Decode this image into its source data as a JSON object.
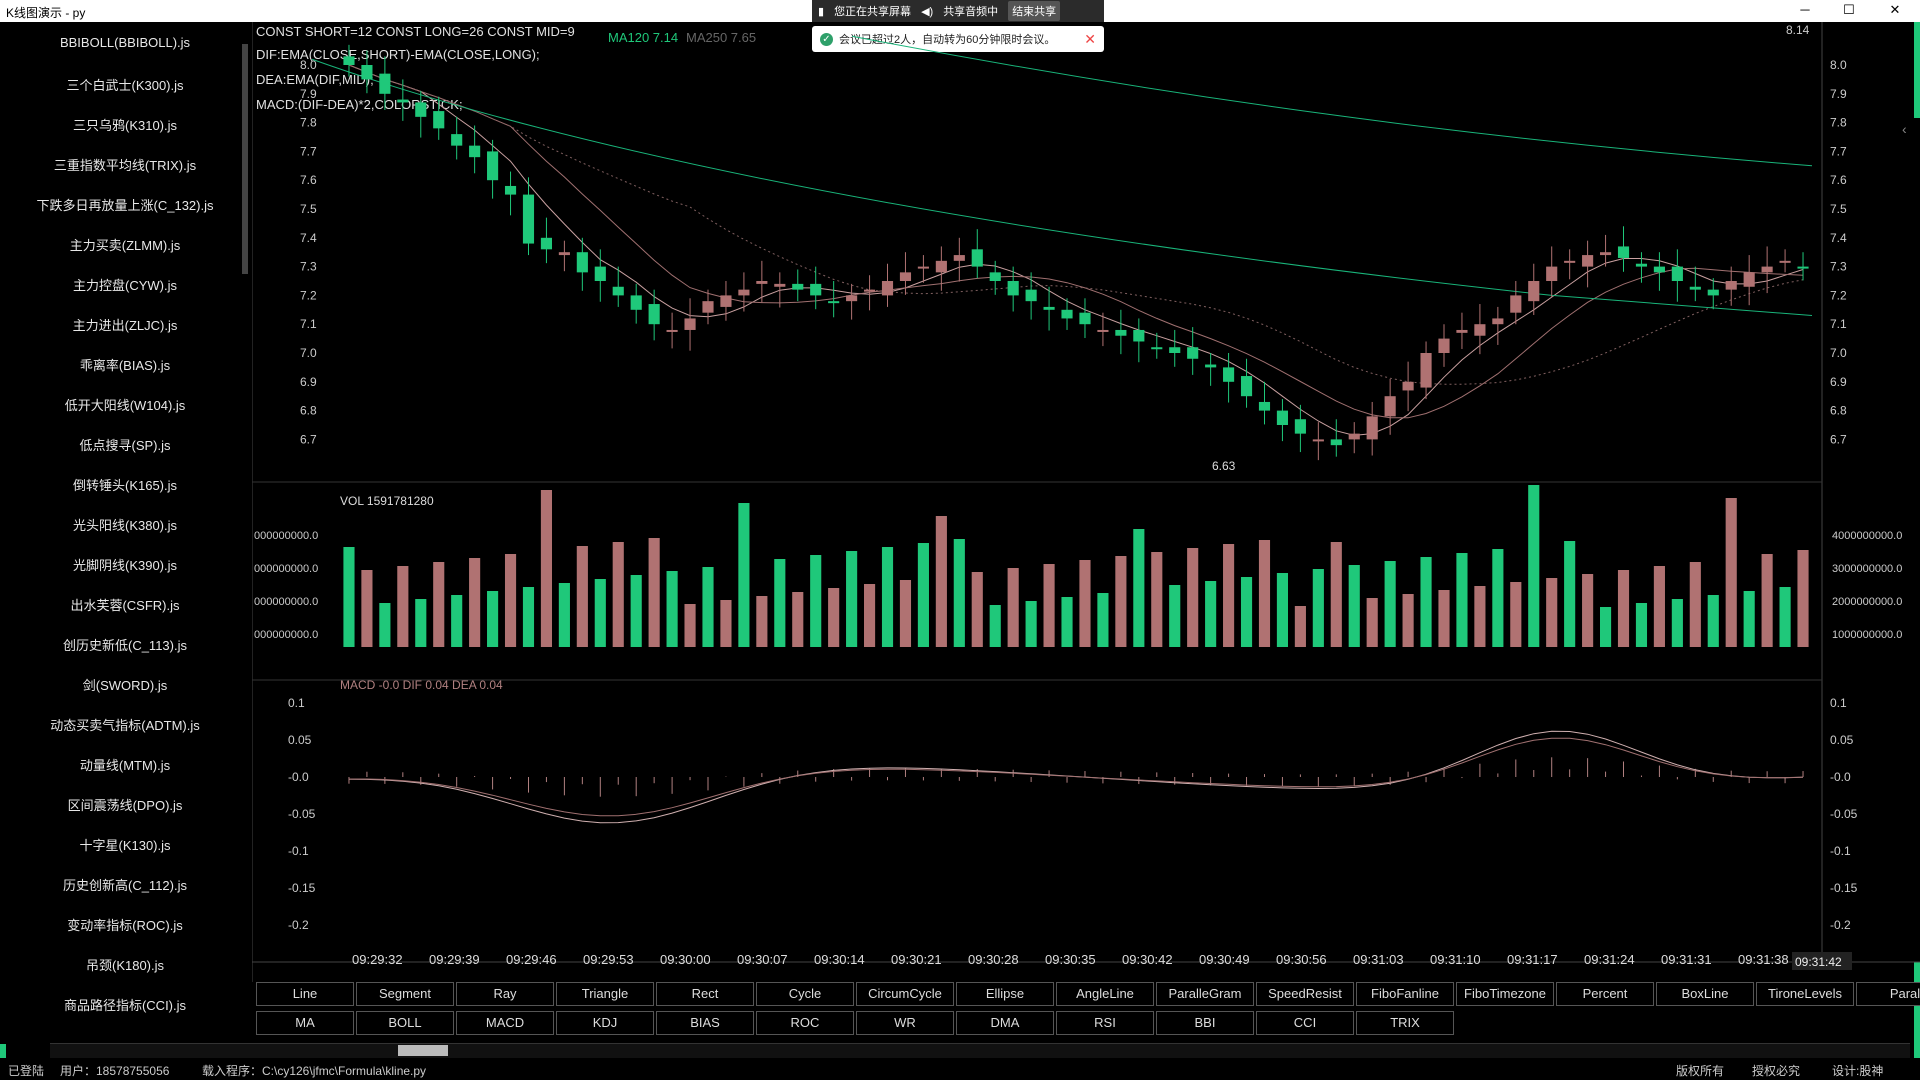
{
  "window": {
    "title": "K线图演示 - py"
  },
  "share": {
    "screen": "您正在共享屏幕",
    "audio": "共享音频中",
    "stop": "结束共享",
    "notice": "会议已超过2人，自动转为60分钟限时会议。"
  },
  "sidebar": {
    "items": [
      "BBIBOLL(BBIBOLL).js",
      "三个白武士(K300).js",
      "三只乌鸦(K310).js",
      "三重指数平均线(TRIX).js",
      "下跌多日再放量上涨(C_132).js",
      "主力买卖(ZLMM).js",
      "主力控盘(CYW).js",
      "主力进出(ZLJC).js",
      "乖离率(BIAS).js",
      "低开大阳线(W104).js",
      "低点搜寻(SP).js",
      "倒转锤头(K165).js",
      "光头阳线(K380).js",
      "光脚阴线(K390).js",
      "出水芙蓉(CSFR).js",
      "创历史新低(C_113).js",
      "剑(SWORD).js",
      "动态买卖气指标(ADTM).js",
      "动量线(MTM).js",
      "区间震荡线(DPO).js",
      "十字星(K130).js",
      "历史创新高(C_112).js",
      "变动率指标(ROC).js",
      "吊颈(K180).js",
      "商品路径指标(CCI).js"
    ]
  },
  "formula": {
    "line1": "CONST SHORT=12 CONST LONG=26 CONST MID=9",
    "line2": "DIF:EMA(CLOSE,SHORT)-EMA(CLOSE,LONG);",
    "line3": "DEA:EMA(DIF,MID);",
    "line4": "MACD:(DIF-DEA)*2,COLORSTICK;"
  },
  "ma_legend": {
    "ma120": "MA120 7.14",
    "ma250": "MA250 7.65"
  },
  "price": {
    "right_top": "8.14",
    "min_label": "6.63",
    "ticks": [
      "8.0",
      "7.9",
      "7.8",
      "7.7",
      "7.6",
      "7.5",
      "7.4",
      "7.3",
      "7.2",
      "7.1",
      "7.0",
      "6.9",
      "6.8",
      "6.7"
    ]
  },
  "volume": {
    "title": "VOL 1591781280",
    "left_ticks": [
      "000000000.0",
      "000000000.0",
      "000000000.0",
      "000000000.0"
    ],
    "right_ticks": [
      "4000000000.0",
      "3000000000.0",
      "2000000000.0",
      "1000000000.0"
    ]
  },
  "macd": {
    "title": "MACD -0.0 DIF 0.04 DEA 0.04",
    "ticks": [
      "0.1",
      "0.05",
      "-0.0",
      "-0.05",
      "-0.1",
      "-0.15",
      "-0.2"
    ]
  },
  "time_axis": [
    "09:29:32",
    "09:29:39",
    "09:29:46",
    "09:29:53",
    "09:30:00",
    "09:30:07",
    "09:30:14",
    "09:30:21",
    "09:30:28",
    "09:30:35",
    "09:30:42",
    "09:30:49",
    "09:30:56",
    "09:31:03",
    "09:31:10",
    "09:31:17",
    "09:31:24",
    "09:31:31",
    "09:31:38"
  ],
  "time_cursor": "09:31:42",
  "tools_row1": [
    "Line",
    "Segment",
    "Ray",
    "Triangle",
    "Rect",
    "Cycle",
    "CircumCycle",
    "Ellipse",
    "AngleLine",
    "ParalleGram",
    "SpeedResist",
    "FiboFanline",
    "FiboTimezone",
    "Percent",
    "BoxLine",
    "TironeLevels",
    "Paral"
  ],
  "tools_row2": [
    "MA",
    "BOLL",
    "MACD",
    "KDJ",
    "BIAS",
    "ROC",
    "WR",
    "DMA",
    "RSI",
    "BBI",
    "CCI",
    "TRIX"
  ],
  "status": {
    "login": "已登陆",
    "user": "用户：18578755056",
    "program": "载入程序：C:\\cy126\\jfmc\\Formula\\kline.py",
    "right1": "版权所有",
    "right2": "授权必究",
    "right3": "设计:股神"
  },
  "colors": {
    "up": "#b07272",
    "down": "#1fc87a",
    "ma_green": "#19b47a",
    "macd": "#b08080"
  },
  "chart_data": {
    "type": "line",
    "series": [
      {
        "name": "close",
        "values": [
          8.0,
          7.95,
          7.9,
          7.87,
          7.82,
          7.78,
          7.72,
          7.68,
          7.6,
          7.55,
          7.38,
          7.36,
          7.35,
          7.28,
          7.25,
          7.2,
          7.15,
          7.1,
          7.08,
          7.12,
          7.18,
          7.2,
          7.22,
          7.25,
          7.24,
          7.22,
          7.2,
          7.18,
          7.2,
          7.22,
          7.25,
          7.28,
          7.3,
          7.32,
          7.34,
          7.3,
          7.25,
          7.2,
          7.18,
          7.15,
          7.12,
          7.1,
          7.08,
          7.06,
          7.04,
          7.02,
          7.0,
          6.98,
          6.95,
          6.9,
          6.85,
          6.8,
          6.75,
          6.72,
          6.7,
          6.68,
          6.72,
          6.78,
          6.85,
          6.9,
          7.0,
          7.05,
          7.08,
          7.1,
          7.12,
          7.2,
          7.25,
          7.3,
          7.32,
          7.34,
          7.35,
          7.33,
          7.3,
          7.28,
          7.25,
          7.22,
          7.2,
          7.25,
          7.28,
          7.3,
          7.32,
          7.3
        ]
      }
    ]
  }
}
